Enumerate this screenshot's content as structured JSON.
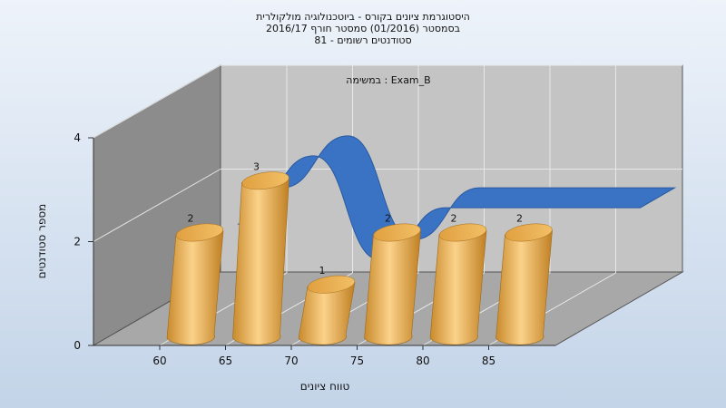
{
  "chart_data": {
    "type": "bar",
    "title_lines": [
      "היסטוגרמת ציונים בקורס - ביוטכנולוגיה מולקולרית",
      "בסמסטר  (01/2016)  סמסטר חורף 2016/17",
      "סטודנטים רשומים - 81"
    ],
    "subtitle": "במשימה : Exam_B",
    "xlabel": "טווח ציונים",
    "ylabel": "מספר סטודנטים",
    "x_ticks": [
      "60",
      "65",
      "70",
      "75",
      "80",
      "85"
    ],
    "y_ticks": [
      "0",
      "2",
      "4"
    ],
    "ylim": [
      0,
      4
    ],
    "categories": [
      "60",
      "65",
      "70",
      "75",
      "80",
      "85"
    ],
    "values": [
      2,
      3,
      1,
      2,
      2,
      2
    ],
    "grid": true,
    "bar_color": "#e8a94a",
    "ribbon_color": "#3a72c4",
    "wall_color": "#c4c4c4",
    "side_wall_color": "#8c8c8c",
    "floor_color": "#a8a8a8"
  }
}
